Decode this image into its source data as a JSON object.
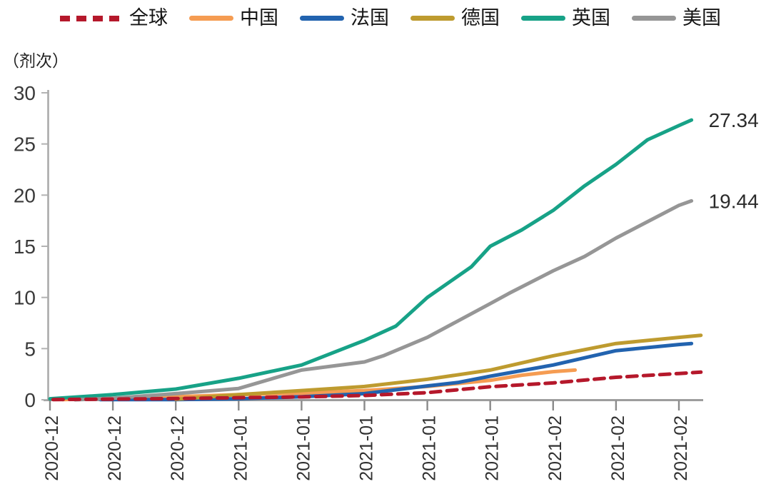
{
  "chart_data": {
    "type": "line",
    "title": "",
    "xlabel": "",
    "ylabel": "（剂次）",
    "ylim": [
      0,
      30
    ],
    "yticks": [
      0,
      5,
      10,
      15,
      20,
      25,
      30
    ],
    "x_tick_labels": [
      "2020-12",
      "2020-12",
      "2020-12",
      "2021-01",
      "2021-01",
      "2021-01",
      "2021-01",
      "2021-01",
      "2021-02",
      "2021-02",
      "2021-02"
    ],
    "grid": false,
    "legend_position": "top",
    "series": [
      {
        "id": "global",
        "name": "全球",
        "color": "#B5182B",
        "style": "dashed",
        "x": [
          0.05,
          1,
          2,
          3,
          4,
          5,
          6,
          7,
          8,
          9,
          10,
          10.35
        ],
        "values": [
          0.02,
          0.06,
          0.12,
          0.2,
          0.28,
          0.42,
          0.7,
          1.28,
          1.65,
          2.2,
          2.57,
          2.7
        ]
      },
      {
        "id": "china",
        "name": "中国",
        "color": "#F59C52",
        "style": "solid",
        "x": [
          0.2,
          1,
          2,
          3,
          4,
          5,
          6,
          7,
          7.5,
          8,
          8.35
        ],
        "values": [
          0.02,
          0.15,
          0.3,
          0.5,
          0.65,
          0.9,
          1.3,
          1.9,
          2.4,
          2.75,
          2.9
        ]
      },
      {
        "id": "france",
        "name": "法国",
        "color": "#2263AF",
        "style": "solid",
        "x": [
          0.8,
          2,
          3,
          4,
          5,
          6,
          6.5,
          7,
          8,
          9,
          10,
          10.2
        ],
        "values": [
          0.02,
          0.02,
          0.1,
          0.3,
          0.6,
          1.35,
          1.7,
          2.3,
          3.4,
          4.8,
          5.4,
          5.5
        ]
      },
      {
        "id": "germany",
        "name": "德国",
        "color": "#BE9B2F",
        "style": "solid",
        "x": [
          2,
          3,
          4,
          5,
          6,
          7,
          8,
          9,
          10,
          10.35
        ],
        "values": [
          0.05,
          0.5,
          0.9,
          1.3,
          2.0,
          2.9,
          4.3,
          5.5,
          6.1,
          6.3
        ]
      },
      {
        "id": "uk",
        "name": "英国",
        "color": "#17A287",
        "style": "solid",
        "x": [
          0,
          1,
          2,
          3,
          4,
          5,
          5.5,
          6,
          6.7,
          7,
          7.5,
          8,
          8.5,
          9,
          9.5,
          10,
          10.2
        ],
        "values": [
          0.1,
          0.5,
          1.05,
          2.1,
          3.4,
          5.8,
          7.2,
          10.0,
          13.0,
          15.0,
          16.6,
          18.5,
          20.9,
          23.0,
          25.4,
          26.8,
          27.34
        ]
      },
      {
        "id": "us",
        "name": "美国",
        "color": "#969696",
        "style": "solid",
        "x": [
          0.4,
          1,
          2,
          3,
          4,
          5,
          5.3,
          6,
          7,
          7.3,
          8,
          8.5,
          9,
          9.5,
          10,
          10.2
        ],
        "values": [
          0,
          0.15,
          0.6,
          1.1,
          2.9,
          3.7,
          4.3,
          6.1,
          9.4,
          10.4,
          12.6,
          14.0,
          15.8,
          17.4,
          19.0,
          19.44
        ]
      }
    ],
    "end_labels": [
      {
        "series_id": "uk",
        "text": "27.34"
      },
      {
        "series_id": "us",
        "text": "19.44"
      }
    ]
  }
}
